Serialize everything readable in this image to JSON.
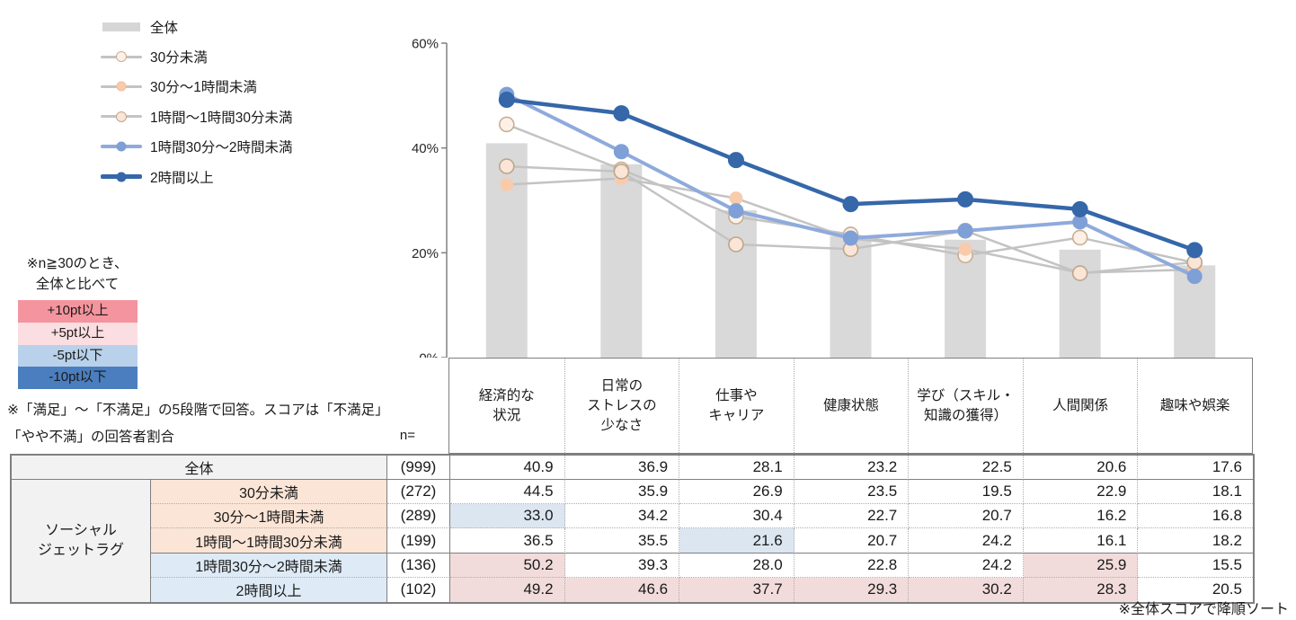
{
  "colors": {
    "bar": "#D9D9D9",
    "gray_line": "#C3C3C3",
    "light_blue": "#8FAADC",
    "dark_blue": "#3567A9",
    "axis": "#808080",
    "highlight_pink": "#F2DCDB",
    "highlight_blue": "#DCE6F1",
    "label_gray": "#F2F2F2",
    "label_peach": "#FBE5D6",
    "label_blue": "#DEEBF6"
  },
  "legend": {
    "items": [
      {
        "label": "全体",
        "type": "bar",
        "line_color": "#D6D6D6"
      },
      {
        "label": "30分未満",
        "type": "line",
        "line_color": "#C3C3C3",
        "marker_fill": "#FDF1E7",
        "marker_stroke": "#C8AE94",
        "marker_style": "open",
        "line_weight": 3
      },
      {
        "label": "30分～1時間未満",
        "type": "line",
        "line_color": "#C3C3C3",
        "marker_fill": "#F8CBAD",
        "marker_stroke": "#F3BD92",
        "marker_style": "filled",
        "line_weight": 3
      },
      {
        "label": "1時間～1時間30分未満",
        "type": "line",
        "line_color": "#C3C3C3",
        "marker_fill": "#FBE5D6",
        "marker_stroke": "#BBA68E",
        "marker_style": "open",
        "line_weight": 3
      },
      {
        "label": "1時間30分～2時間未満",
        "type": "line",
        "line_color": "#8FAADC",
        "marker_fill": "#7FA0D6",
        "marker_stroke": "#7FA0D6",
        "marker_style": "filled",
        "line_weight": 4
      },
      {
        "label": "2時間以上",
        "type": "line",
        "line_color": "#3567A9",
        "marker_fill": "#3567A9",
        "marker_stroke": "#3567A9",
        "marker_style": "filled",
        "line_weight": 4.5
      }
    ]
  },
  "note_box": {
    "heading_line1": "※n≧30のとき、",
    "heading_line2": "全体と比べて",
    "rows": [
      {
        "label": "+10pt以上",
        "bg": "#F4949E"
      },
      {
        "label": "+5pt以上",
        "bg": "#FBDEE1"
      },
      {
        "label": "-5pt以下",
        "bg": "#B9D1EA"
      },
      {
        "label": "-10pt以下",
        "bg": "#4B7EBE"
      }
    ]
  },
  "score_note": "※「満足」～「不満足」の5段階で回答。スコアは「不満足」「やや不満」の回答者割合",
  "footer_note": "※全体スコアで降順ソート",
  "chart_data": {
    "type": "bar+line",
    "categories": [
      "経済的な状況",
      "日常のストレスの少なさ",
      "仕事やキャリア",
      "健康状態",
      "学び（スキル・知識の獲得）",
      "人間関係",
      "趣味や娯楽"
    ],
    "category_lines": [
      [
        "経済的な",
        "状況"
      ],
      [
        "日常の",
        "ストレスの",
        "少なさ"
      ],
      [
        "仕事や",
        "キャリア"
      ],
      [
        "健康状態"
      ],
      [
        "学び（スキル・",
        "知識の獲得）"
      ],
      [
        "人間関係"
      ],
      [
        "趣味や娯楽"
      ]
    ],
    "bar_series": {
      "name": "全体",
      "values": [
        40.9,
        36.9,
        28.1,
        23.2,
        22.5,
        20.6,
        17.6
      ],
      "color": "#D9D9D9"
    },
    "series": [
      {
        "name": "30分未満",
        "values": [
          44.5,
          35.9,
          26.9,
          23.5,
          19.5,
          22.9,
          18.1
        ],
        "line_color": "#C3C3C3",
        "line_width": 2.5,
        "marker_fill": "#FDF1E7",
        "marker_stroke": "#C8AE94",
        "marker_style": "open",
        "marker_r": 8
      },
      {
        "name": "30分～1時間未満",
        "values": [
          33.0,
          34.2,
          30.4,
          22.7,
          20.7,
          16.2,
          16.8
        ],
        "line_color": "#C3C3C3",
        "line_width": 2.5,
        "marker_fill": "#F8CBAD",
        "marker_stroke": "#F3BD92",
        "marker_style": "filled",
        "marker_r": 7
      },
      {
        "name": "1時間～1時間30分未満",
        "values": [
          36.5,
          35.5,
          21.6,
          20.7,
          24.2,
          16.1,
          18.2
        ],
        "line_color": "#C3C3C3",
        "line_width": 2.5,
        "marker_fill": "#FBE5D6",
        "marker_stroke": "#BBA68E",
        "marker_style": "open",
        "marker_r": 8
      },
      {
        "name": "1時間30分～2時間未満",
        "values": [
          50.2,
          39.3,
          28.0,
          22.8,
          24.2,
          25.9,
          15.5
        ],
        "line_color": "#8FAADC",
        "line_width": 4,
        "marker_fill": "#7FA0D6",
        "marker_stroke": "#7FA0D6",
        "marker_style": "filled",
        "marker_r": 8
      },
      {
        "name": "2時間以上",
        "values": [
          49.2,
          46.6,
          37.7,
          29.3,
          30.2,
          28.3,
          20.5
        ],
        "line_color": "#3567A9",
        "line_width": 4.5,
        "marker_fill": "#3567A9",
        "marker_stroke": "#3567A9",
        "marker_style": "filled",
        "marker_r": 8.5
      }
    ],
    "ylim": [
      0,
      60
    ],
    "yticks": [
      {
        "value": 0,
        "label": "0%"
      },
      {
        "value": 20,
        "label": "20%"
      },
      {
        "value": 40,
        "label": "40%"
      },
      {
        "value": 60,
        "label": "60%"
      }
    ],
    "grid": false,
    "legend_position": "top-left"
  },
  "table": {
    "n_header": "n=",
    "group_label_lines": [
      "ソーシャル",
      "ジェットラグ"
    ],
    "rows": [
      {
        "label": "全体",
        "n": "(999)",
        "values": [
          "40.9",
          "36.9",
          "28.1",
          "23.2",
          "22.5",
          "20.6",
          "17.6"
        ],
        "label_bg": "gray",
        "merged": true,
        "highlights": [
          null,
          null,
          null,
          null,
          null,
          null,
          null
        ]
      },
      {
        "label": "30分未満",
        "n": "(272)",
        "values": [
          "44.5",
          "35.9",
          "26.9",
          "23.5",
          "19.5",
          "22.9",
          "18.1"
        ],
        "label_bg": "peach",
        "highlights": [
          null,
          null,
          null,
          null,
          null,
          null,
          null
        ]
      },
      {
        "label": "30分～1時間未満",
        "n": "(289)",
        "values": [
          "33.0",
          "34.2",
          "30.4",
          "22.7",
          "20.7",
          "16.2",
          "16.8"
        ],
        "label_bg": "peach",
        "highlights": [
          "blue",
          null,
          null,
          null,
          null,
          null,
          null
        ]
      },
      {
        "label": "1時間～1時間30分未満",
        "n": "(199)",
        "values": [
          "36.5",
          "35.5",
          "21.6",
          "20.7",
          "24.2",
          "16.1",
          "18.2"
        ],
        "label_bg": "peach",
        "highlights": [
          null,
          null,
          "blue",
          null,
          null,
          null,
          null
        ]
      },
      {
        "label": "1時間30分～2時間未満",
        "n": "(136)",
        "values": [
          "50.2",
          "39.3",
          "28.0",
          "22.8",
          "24.2",
          "25.9",
          "15.5"
        ],
        "label_bg": "blue",
        "highlights": [
          "pink",
          null,
          null,
          null,
          null,
          "pink",
          null
        ]
      },
      {
        "label": "2時間以上",
        "n": "(102)",
        "values": [
          "49.2",
          "46.6",
          "37.7",
          "29.3",
          "30.2",
          "28.3",
          "20.5"
        ],
        "label_bg": "blue",
        "highlights": [
          "pink",
          "pink",
          "pink",
          "pink",
          "pink",
          "pink",
          null
        ]
      }
    ]
  }
}
